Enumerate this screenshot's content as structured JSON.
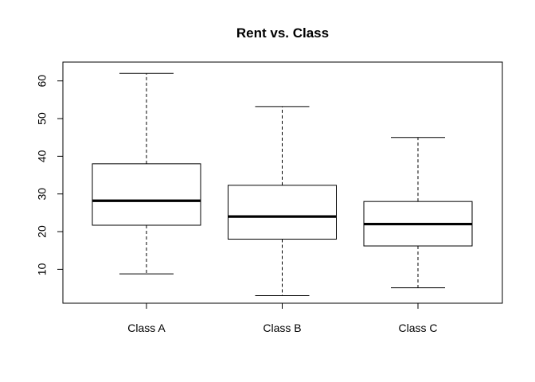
{
  "chart_data": {
    "type": "boxplot",
    "title": "Rent vs. Class",
    "xlabel": "",
    "ylabel": "",
    "categories": [
      "Class A",
      "Class B",
      "Class C"
    ],
    "boxes": [
      {
        "category": "Class A",
        "min": 8.8,
        "q1": 21.7,
        "median": 28.2,
        "q3": 38.0,
        "max": 62.0
      },
      {
        "category": "Class B",
        "min": 3.0,
        "q1": 18.0,
        "median": 24.0,
        "q3": 32.3,
        "max": 53.2
      },
      {
        "category": "Class C",
        "min": 5.1,
        "q1": 16.2,
        "median": 22.0,
        "q3": 28.0,
        "max": 45.0
      }
    ],
    "ylim": [
      1.0,
      65.0
    ],
    "yticks": [
      10,
      20,
      30,
      40,
      50,
      60
    ],
    "ytick_labels": [
      "10",
      "20",
      "30",
      "40",
      "50",
      "60"
    ],
    "grid": false,
    "legend": "none",
    "colors": {
      "box_fill": "#ffffff",
      "stroke": "#000000"
    }
  }
}
